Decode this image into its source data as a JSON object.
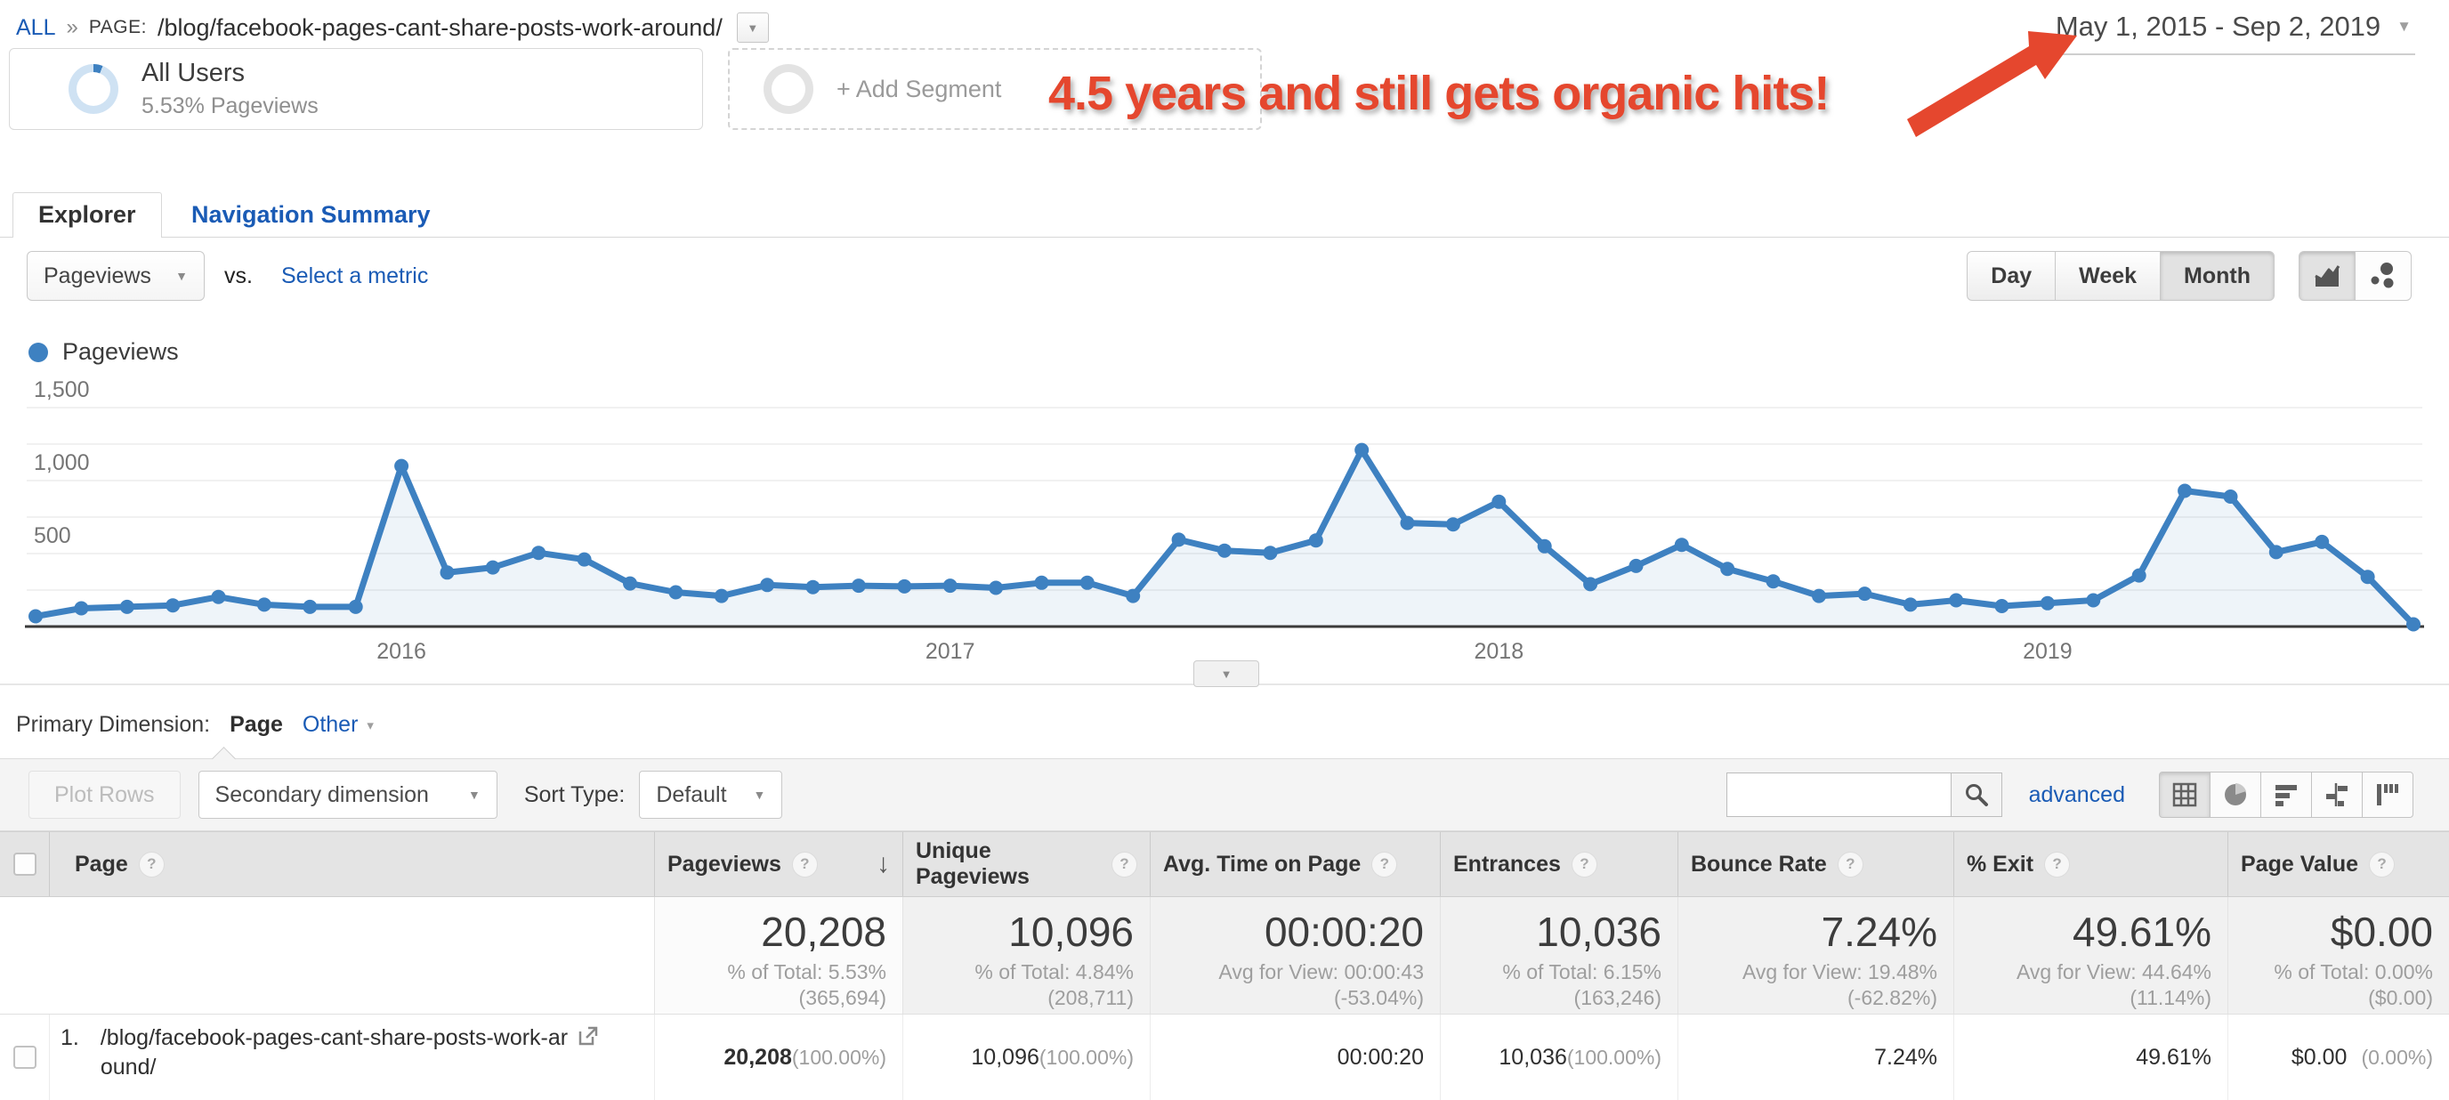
{
  "breadcrumb": {
    "all_label": "ALL",
    "separator": "»",
    "page_prefix": "PAGE:",
    "page_path": "/blog/facebook-pages-cant-share-posts-work-around/"
  },
  "date_range": {
    "text": "May 1, 2015 - Sep 2, 2019"
  },
  "annotation": {
    "text": "4.5 years and still gets organic hits!",
    "color": "#e5472e"
  },
  "segments": {
    "all_users": {
      "title": "All Users",
      "subtitle": "5.53% Pageviews"
    },
    "add_segment_label": "+ Add Segment"
  },
  "tabs": {
    "explorer": "Explorer",
    "navigation_summary": "Navigation Summary"
  },
  "metric_bar": {
    "metric_selector": "Pageviews",
    "vs_label": "vs.",
    "select_metric_label": "Select a metric",
    "granularity": [
      "Day",
      "Week",
      "Month"
    ],
    "active_granularity": "Month"
  },
  "legend": {
    "label": "Pageviews",
    "color": "#3e81c1"
  },
  "chart_data": {
    "type": "area",
    "series_name": "Pageviews",
    "x": [
      "May 2015",
      "Jun 2015",
      "Jul 2015",
      "Aug 2015",
      "Sep 2015",
      "Oct 2015",
      "Nov 2015",
      "Dec 2015",
      "Jan 2016",
      "Feb 2016",
      "Mar 2016",
      "Apr 2016",
      "May 2016",
      "Jun 2016",
      "Jul 2016",
      "Aug 2016",
      "Sep 2016",
      "Oct 2016",
      "Nov 2016",
      "Dec 2016",
      "Jan 2017",
      "Feb 2017",
      "Mar 2017",
      "Apr 2017",
      "May 2017",
      "Jun 2017",
      "Jul 2017",
      "Aug 2017",
      "Sep 2017",
      "Oct 2017",
      "Nov 2017",
      "Dec 2017",
      "Jan 2018",
      "Feb 2018",
      "Mar 2018",
      "Apr 2018",
      "May 2018",
      "Jun 2018",
      "Jul 2018",
      "Aug 2018",
      "Sep 2018",
      "Oct 2018",
      "Nov 2018",
      "Dec 2018",
      "Jan 2019",
      "Feb 2019",
      "Mar 2019",
      "Apr 2019",
      "May 2019",
      "Jun 2019",
      "Jul 2019",
      "Aug 2019",
      "Sep 2019"
    ],
    "values": [
      70,
      125,
      135,
      145,
      203,
      150,
      135,
      135,
      1100,
      370,
      405,
      505,
      460,
      295,
      235,
      210,
      285,
      270,
      280,
      275,
      280,
      265,
      300,
      300,
      210,
      595,
      520,
      505,
      590,
      1210,
      710,
      700,
      855,
      550,
      290,
      415,
      560,
      395,
      310,
      210,
      225,
      150,
      180,
      140,
      160,
      180,
      350,
      930,
      890,
      510,
      580,
      340,
      15
    ],
    "ylim": [
      0,
      1500
    ],
    "yticks": [
      {
        "value": 500,
        "label": "500"
      },
      {
        "value": 1000,
        "label": "1,000"
      },
      {
        "value": 1500,
        "label": "1,500"
      }
    ],
    "xticks": [
      "2016",
      "2017",
      "2018",
      "2019"
    ],
    "grid": true,
    "line_color": "#3e81c1",
    "legend_position": "top-left"
  },
  "primary_dimension": {
    "label": "Primary Dimension:",
    "selected": "Page",
    "other_label": "Other"
  },
  "toolbar": {
    "plot_rows_label": "Plot Rows",
    "secondary_dimension_label": "Secondary dimension",
    "sort_type_label": "Sort Type:",
    "sort_type_value": "Default",
    "search_value": "",
    "advanced_label": "advanced"
  },
  "table": {
    "page_column_label": "Page",
    "columns": [
      {
        "key": "pageviews",
        "label": "Pageviews",
        "sorted": true,
        "summary_value": "20,208",
        "summary_sub1": "% of Total: 5.53%",
        "summary_sub2": "(365,694)",
        "row_value": "20,208",
        "row_sub": "(100.00%)"
      },
      {
        "key": "unique_pageviews",
        "label": "Unique Pageviews",
        "summary_value": "10,096",
        "summary_sub1": "% of Total: 4.84%",
        "summary_sub2": "(208,711)",
        "row_value": "10,096",
        "row_sub": "(100.00%)"
      },
      {
        "key": "avg_time_on_page",
        "label": "Avg. Time on Page",
        "summary_value": "00:00:20",
        "summary_sub1": "Avg for View: 00:00:43",
        "summary_sub2": "(-53.04%)",
        "row_value": "00:00:20",
        "row_sub": ""
      },
      {
        "key": "entrances",
        "label": "Entrances",
        "summary_value": "10,036",
        "summary_sub1": "% of Total: 6.15%",
        "summary_sub2": "(163,246)",
        "row_value": "10,036",
        "row_sub": "(100.00%)"
      },
      {
        "key": "bounce_rate",
        "label": "Bounce Rate",
        "summary_value": "7.24%",
        "summary_sub1": "Avg for View: 19.48%",
        "summary_sub2": "(-62.82%)",
        "row_value": "7.24%",
        "row_sub": ""
      },
      {
        "key": "percent_exit",
        "label": "% Exit",
        "summary_value": "49.61%",
        "summary_sub1": "Avg for View: 44.64%",
        "summary_sub2": "(11.14%)",
        "row_value": "49.61%",
        "row_sub": ""
      },
      {
        "key": "page_value",
        "label": "Page Value",
        "summary_value": "$0.00",
        "summary_sub1": "% of Total: 0.00%",
        "summary_sub2": "($0.00)",
        "row_value": "$0.00",
        "row_sub": "(0.00%)"
      }
    ],
    "row": {
      "index": "1.",
      "url_line1": "/blog/facebook-pages-cant-share-posts-work-ar",
      "url_line2": "ound/"
    }
  }
}
